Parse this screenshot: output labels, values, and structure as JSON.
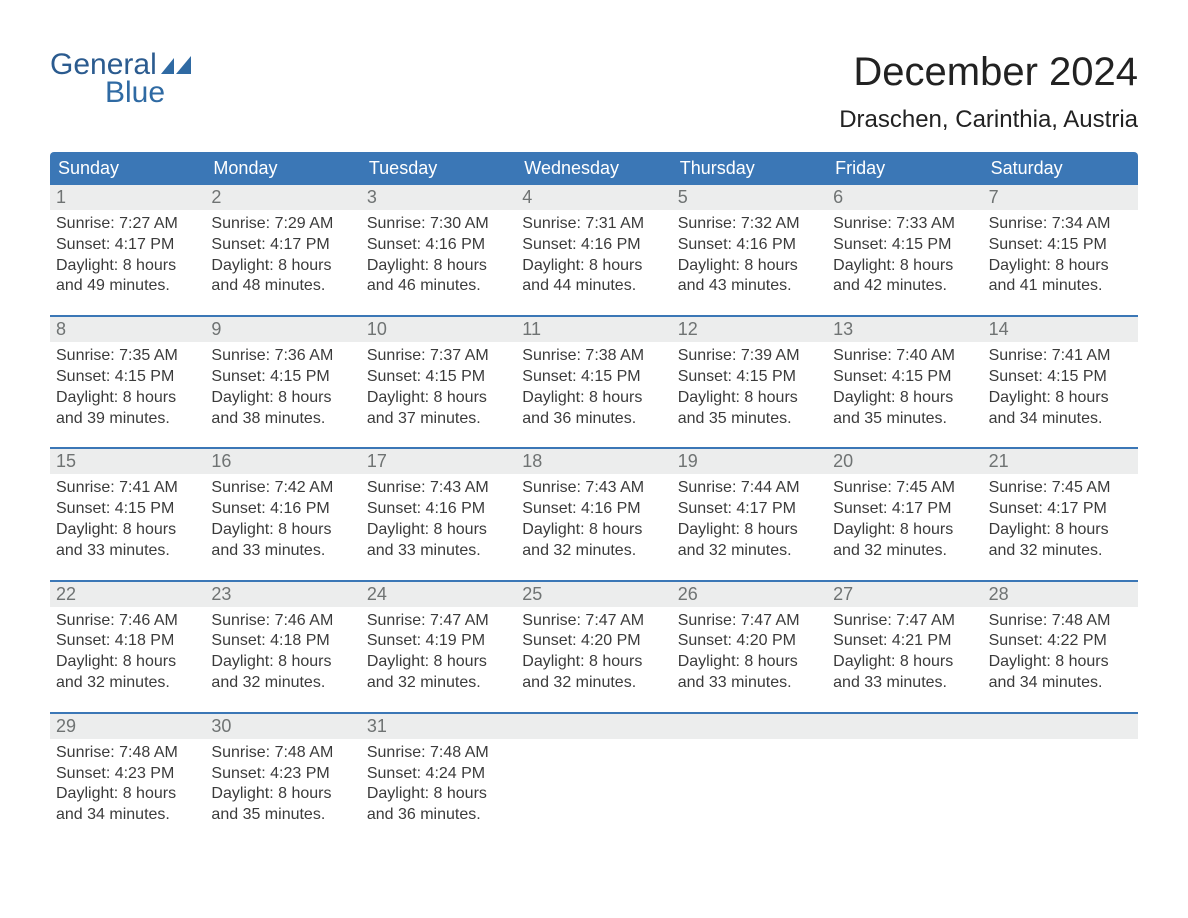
{
  "logo": {
    "text1": "General",
    "text2": "Blue",
    "icon_color": "#2f6aa3"
  },
  "title": {
    "month": "December 2024",
    "location": "Draschen, Carinthia, Austria"
  },
  "colors": {
    "header_bg": "#3b77b6",
    "header_text": "#ffffff",
    "daynum_bg": "#eceded",
    "daynum_text": "#6f7373",
    "body_text": "#3b3b3b",
    "week_border": "#3b77b6",
    "background": "#ffffff"
  },
  "typography": {
    "month_title_fontsize": 40,
    "location_fontsize": 24,
    "weekday_fontsize": 18,
    "daynum_fontsize": 18,
    "cell_fontsize": 16
  },
  "weekdays": [
    "Sunday",
    "Monday",
    "Tuesday",
    "Wednesday",
    "Thursday",
    "Friday",
    "Saturday"
  ],
  "labels": {
    "sunrise": "Sunrise:",
    "sunset": "Sunset:",
    "daylight": "Daylight:"
  },
  "weeks": [
    [
      {
        "day": "1",
        "sunrise": "7:27 AM",
        "sunset": "4:17 PM",
        "daylight_line1": "8 hours",
        "daylight_line2": "and 49 minutes."
      },
      {
        "day": "2",
        "sunrise": "7:29 AM",
        "sunset": "4:17 PM",
        "daylight_line1": "8 hours",
        "daylight_line2": "and 48 minutes."
      },
      {
        "day": "3",
        "sunrise": "7:30 AM",
        "sunset": "4:16 PM",
        "daylight_line1": "8 hours",
        "daylight_line2": "and 46 minutes."
      },
      {
        "day": "4",
        "sunrise": "7:31 AM",
        "sunset": "4:16 PM",
        "daylight_line1": "8 hours",
        "daylight_line2": "and 44 minutes."
      },
      {
        "day": "5",
        "sunrise": "7:32 AM",
        "sunset": "4:16 PM",
        "daylight_line1": "8 hours",
        "daylight_line2": "and 43 minutes."
      },
      {
        "day": "6",
        "sunrise": "7:33 AM",
        "sunset": "4:15 PM",
        "daylight_line1": "8 hours",
        "daylight_line2": "and 42 minutes."
      },
      {
        "day": "7",
        "sunrise": "7:34 AM",
        "sunset": "4:15 PM",
        "daylight_line1": "8 hours",
        "daylight_line2": "and 41 minutes."
      }
    ],
    [
      {
        "day": "8",
        "sunrise": "7:35 AM",
        "sunset": "4:15 PM",
        "daylight_line1": "8 hours",
        "daylight_line2": "and 39 minutes."
      },
      {
        "day": "9",
        "sunrise": "7:36 AM",
        "sunset": "4:15 PM",
        "daylight_line1": "8 hours",
        "daylight_line2": "and 38 minutes."
      },
      {
        "day": "10",
        "sunrise": "7:37 AM",
        "sunset": "4:15 PM",
        "daylight_line1": "8 hours",
        "daylight_line2": "and 37 minutes."
      },
      {
        "day": "11",
        "sunrise": "7:38 AM",
        "sunset": "4:15 PM",
        "daylight_line1": "8 hours",
        "daylight_line2": "and 36 minutes."
      },
      {
        "day": "12",
        "sunrise": "7:39 AM",
        "sunset": "4:15 PM",
        "daylight_line1": "8 hours",
        "daylight_line2": "and 35 minutes."
      },
      {
        "day": "13",
        "sunrise": "7:40 AM",
        "sunset": "4:15 PM",
        "daylight_line1": "8 hours",
        "daylight_line2": "and 35 minutes."
      },
      {
        "day": "14",
        "sunrise": "7:41 AM",
        "sunset": "4:15 PM",
        "daylight_line1": "8 hours",
        "daylight_line2": "and 34 minutes."
      }
    ],
    [
      {
        "day": "15",
        "sunrise": "7:41 AM",
        "sunset": "4:15 PM",
        "daylight_line1": "8 hours",
        "daylight_line2": "and 33 minutes."
      },
      {
        "day": "16",
        "sunrise": "7:42 AM",
        "sunset": "4:16 PM",
        "daylight_line1": "8 hours",
        "daylight_line2": "and 33 minutes."
      },
      {
        "day": "17",
        "sunrise": "7:43 AM",
        "sunset": "4:16 PM",
        "daylight_line1": "8 hours",
        "daylight_line2": "and 33 minutes."
      },
      {
        "day": "18",
        "sunrise": "7:43 AM",
        "sunset": "4:16 PM",
        "daylight_line1": "8 hours",
        "daylight_line2": "and 32 minutes."
      },
      {
        "day": "19",
        "sunrise": "7:44 AM",
        "sunset": "4:17 PM",
        "daylight_line1": "8 hours",
        "daylight_line2": "and 32 minutes."
      },
      {
        "day": "20",
        "sunrise": "7:45 AM",
        "sunset": "4:17 PM",
        "daylight_line1": "8 hours",
        "daylight_line2": "and 32 minutes."
      },
      {
        "day": "21",
        "sunrise": "7:45 AM",
        "sunset": "4:17 PM",
        "daylight_line1": "8 hours",
        "daylight_line2": "and 32 minutes."
      }
    ],
    [
      {
        "day": "22",
        "sunrise": "7:46 AM",
        "sunset": "4:18 PM",
        "daylight_line1": "8 hours",
        "daylight_line2": "and 32 minutes."
      },
      {
        "day": "23",
        "sunrise": "7:46 AM",
        "sunset": "4:18 PM",
        "daylight_line1": "8 hours",
        "daylight_line2": "and 32 minutes."
      },
      {
        "day": "24",
        "sunrise": "7:47 AM",
        "sunset": "4:19 PM",
        "daylight_line1": "8 hours",
        "daylight_line2": "and 32 minutes."
      },
      {
        "day": "25",
        "sunrise": "7:47 AM",
        "sunset": "4:20 PM",
        "daylight_line1": "8 hours",
        "daylight_line2": "and 32 minutes."
      },
      {
        "day": "26",
        "sunrise": "7:47 AM",
        "sunset": "4:20 PM",
        "daylight_line1": "8 hours",
        "daylight_line2": "and 33 minutes."
      },
      {
        "day": "27",
        "sunrise": "7:47 AM",
        "sunset": "4:21 PM",
        "daylight_line1": "8 hours",
        "daylight_line2": "and 33 minutes."
      },
      {
        "day": "28",
        "sunrise": "7:48 AM",
        "sunset": "4:22 PM",
        "daylight_line1": "8 hours",
        "daylight_line2": "and 34 minutes."
      }
    ],
    [
      {
        "day": "29",
        "sunrise": "7:48 AM",
        "sunset": "4:23 PM",
        "daylight_line1": "8 hours",
        "daylight_line2": "and 34 minutes."
      },
      {
        "day": "30",
        "sunrise": "7:48 AM",
        "sunset": "4:23 PM",
        "daylight_line1": "8 hours",
        "daylight_line2": "and 35 minutes."
      },
      {
        "day": "31",
        "sunrise": "7:48 AM",
        "sunset": "4:24 PM",
        "daylight_line1": "8 hours",
        "daylight_line2": "and 36 minutes."
      },
      null,
      null,
      null,
      null
    ]
  ]
}
